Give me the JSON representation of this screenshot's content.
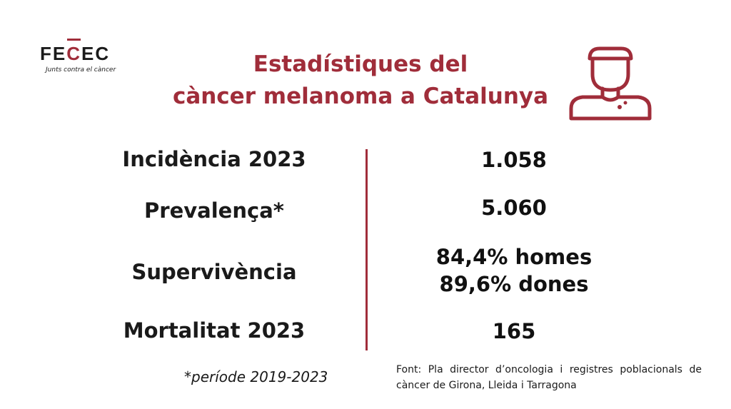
{
  "logo": {
    "word_before": "FE",
    "word_red": "C",
    "word_after": "EC",
    "tagline": "Junts contra el càncer"
  },
  "title": {
    "line1": "Estadístiques del",
    "line2": "càncer melanoma a Catalunya"
  },
  "stats": [
    {
      "label": "Incidència 2023",
      "values": [
        "1.058"
      ]
    },
    {
      "label": "Prevalença*",
      "values": [
        "5.060"
      ]
    },
    {
      "label": "Supervivència",
      "values": [
        "84,4% homes",
        "89,6% dones"
      ]
    },
    {
      "label": "Mortalitat 2023",
      "values": [
        "165"
      ]
    }
  ],
  "footnote": "*període 2019-2023",
  "source": "Font: Pla director d’oncologia i registres poblacionals de càncer de Girona, Lleida i Tarragona",
  "icon": "person-melanoma-icon",
  "colors": {
    "accent": "#a02d3a",
    "text": "#1a1a1a",
    "background": "#ffffff"
  }
}
